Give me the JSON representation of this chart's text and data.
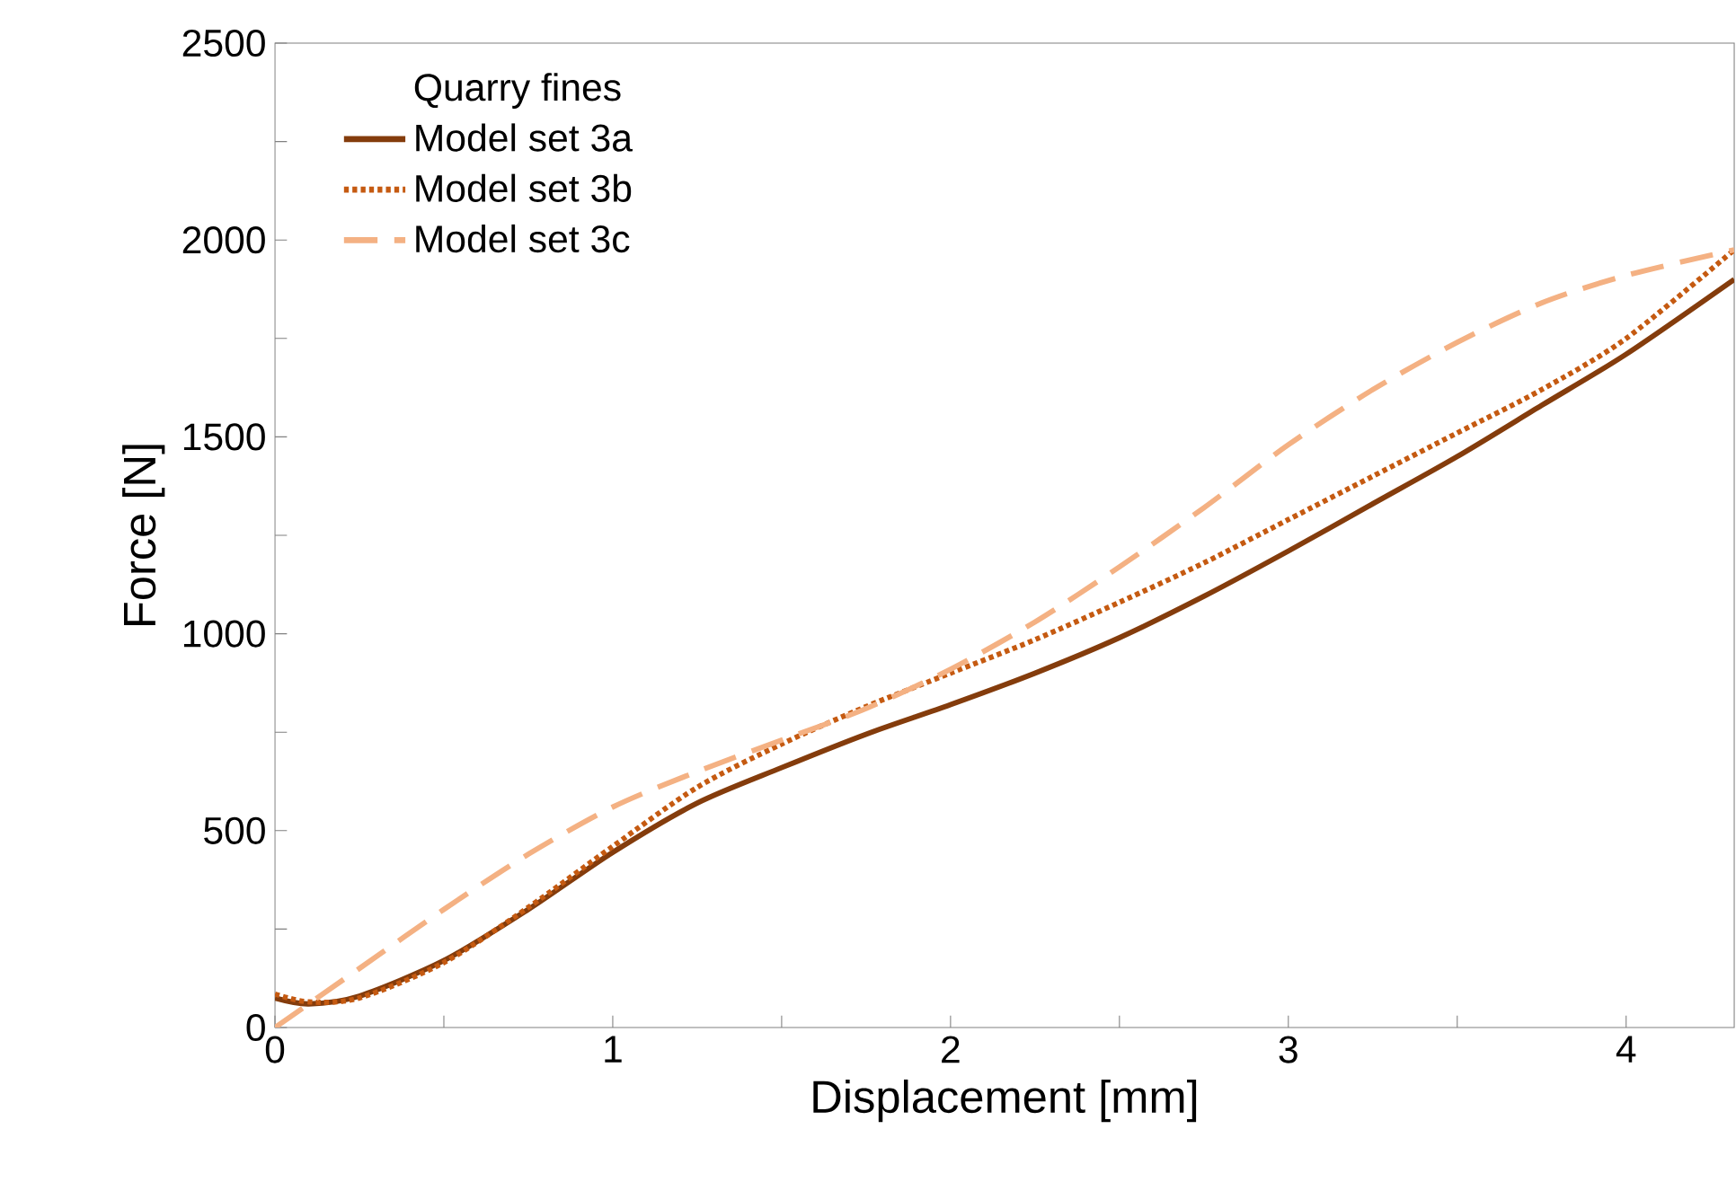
{
  "chart_data": {
    "type": "line",
    "xlabel": "Displacement [mm]",
    "ylabel": "Force [N]",
    "legend_title": "Quarry fines",
    "legend": "top left",
    "grid": false,
    "xlim": [
      0,
      4.32
    ],
    "ylim": [
      0,
      2500
    ],
    "xticks": [
      0,
      {
        "value": 0.5,
        "label": null
      },
      1,
      {
        "value": 1.5,
        "label": null
      },
      2,
      {
        "value": 2.5,
        "label": null
      },
      3,
      {
        "value": 3.5,
        "label": null
      },
      4
    ],
    "yticks": [
      0,
      {
        "value": 250,
        "label": null
      },
      500,
      {
        "value": 750,
        "label": null
      },
      1000,
      {
        "value": 1250,
        "label": null
      },
      1500,
      {
        "value": 1750,
        "label": null
      },
      2000,
      {
        "value": 2250,
        "label": null
      },
      2500
    ],
    "x": [
      0,
      0.1,
      0.25,
      0.5,
      0.75,
      1.0,
      1.25,
      1.5,
      1.75,
      2.0,
      2.25,
      2.5,
      2.75,
      3.0,
      3.25,
      3.5,
      3.75,
      4.0,
      4.32
    ],
    "series": [
      {
        "name": "Model set 3a",
        "color": "#843c0c",
        "line_style": "solid",
        "values": [
          75,
          60,
          80,
          170,
          300,
          445,
          570,
          660,
          745,
          820,
          900,
          990,
          1095,
          1210,
          1330,
          1450,
          1580,
          1710,
          1900
        ]
      },
      {
        "name": "Model set 3b",
        "color": "#c55a11",
        "line_style": "dotted",
        "values": [
          85,
          65,
          75,
          165,
          305,
          460,
          610,
          720,
          815,
          900,
          985,
          1080,
          1180,
          1290,
          1400,
          1510,
          1620,
          1750,
          1975
        ]
      },
      {
        "name": "Model set 3c",
        "color": "#f4b183",
        "line_style": "dashed",
        "values": [
          0,
          60,
          150,
          300,
          440,
          560,
          650,
          730,
          810,
          910,
          1030,
          1170,
          1320,
          1480,
          1620,
          1740,
          1840,
          1910,
          1975
        ]
      }
    ]
  }
}
